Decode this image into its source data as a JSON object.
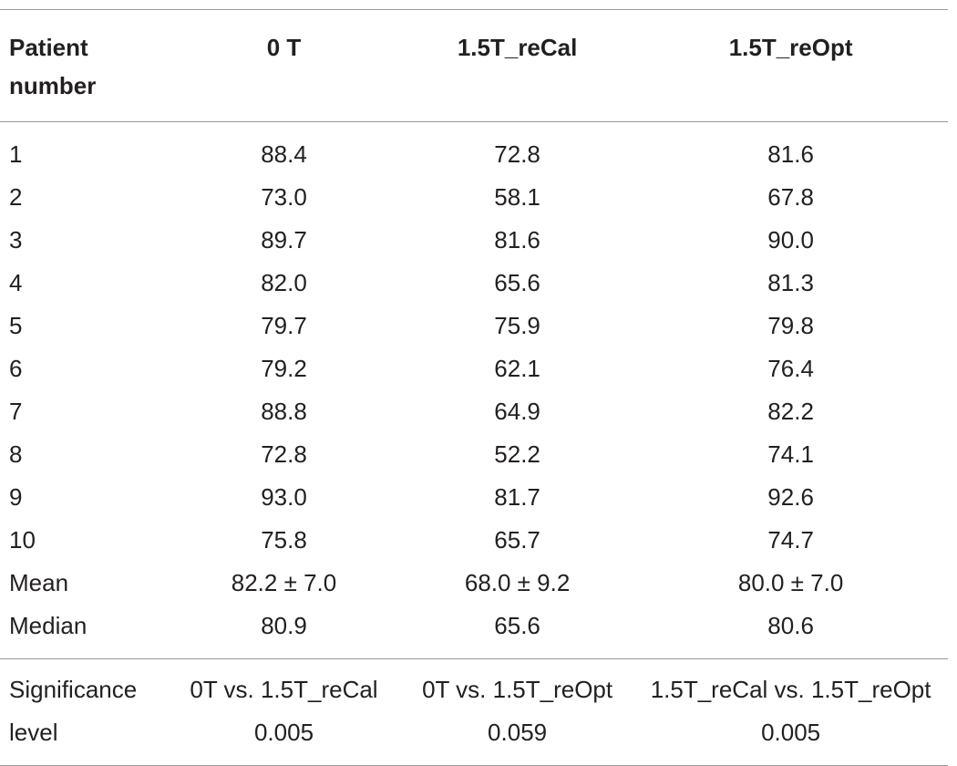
{
  "table": {
    "headers": [
      "Patient\nnumber",
      "0 T",
      "1.5T_reCal",
      "1.5T_reOpt"
    ],
    "rows": [
      [
        "1",
        "88.4",
        "72.8",
        "81.6"
      ],
      [
        "2",
        "73.0",
        "58.1",
        "67.8"
      ],
      [
        "3",
        "89.7",
        "81.6",
        "90.0"
      ],
      [
        "4",
        "82.0",
        "65.6",
        "81.3"
      ],
      [
        "5",
        "79.7",
        "75.9",
        "79.8"
      ],
      [
        "6",
        "79.2",
        "62.1",
        "76.4"
      ],
      [
        "7",
        "88.8",
        "64.9",
        "82.2"
      ],
      [
        "8",
        "72.8",
        "52.2",
        "74.1"
      ],
      [
        "9",
        "93.0",
        "81.7",
        "92.6"
      ],
      [
        "10",
        "75.8",
        "65.7",
        "74.7"
      ],
      [
        "Mean",
        "82.2 ± 7.0",
        "68.0 ± 9.2",
        "80.0 ± 7.0"
      ],
      [
        "Median",
        "80.9",
        "65.6",
        "80.6"
      ]
    ],
    "significance": {
      "label_line1": "Significance",
      "label_line2": "level",
      "comparisons": [
        "0T vs. 1.5T_reCal",
        "0T vs. 1.5T_reOpt",
        "1.5T_reCal vs. 1.5T_reOpt"
      ],
      "values": [
        "0.005",
        "0.059",
        "0.005"
      ]
    }
  }
}
